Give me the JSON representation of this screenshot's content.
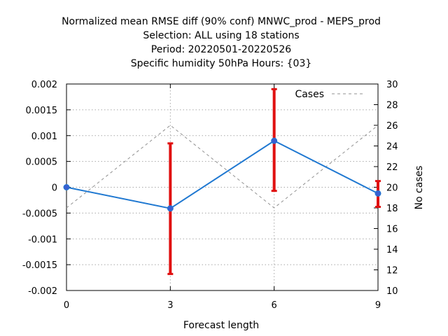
{
  "chart_data": {
    "type": "line",
    "title_lines": [
      "Normalized mean RMSE diff (90% conf) MNWC_prod - MEPS_prod",
      "Selection: ALL using    18 stations",
      "Period: 20220501-20220526",
      "Specific humidity 50hPa   Hours: {03}"
    ],
    "xlabel": "Forecast length",
    "ylabel": "",
    "y2label": "No cases",
    "x": [
      0,
      3,
      6,
      9
    ],
    "xlim": [
      0,
      9
    ],
    "ylim": [
      -0.002,
      0.002
    ],
    "y2lim": [
      10,
      30
    ],
    "x_ticks": [
      0,
      3,
      6,
      9
    ],
    "y_ticks": [
      -0.002,
      -0.0015,
      -0.001,
      -0.0005,
      0,
      0.0005,
      0.001,
      0.0015,
      0.002
    ],
    "y_tick_labels": [
      "-0.002",
      "-0.0015",
      "-0.001",
      "-0.0005",
      "0",
      "0.0005",
      "0.001",
      "0.0015",
      "0.002"
    ],
    "y2_ticks": [
      10,
      12,
      14,
      16,
      18,
      20,
      22,
      24,
      26,
      28,
      30
    ],
    "grid": true,
    "legend_position": "top-right",
    "series": [
      {
        "name": "",
        "axis": "left",
        "color": "#1f78d1",
        "values": [
          0,
          -0.00041,
          0.0009,
          -0.00012
        ],
        "error_low": [
          0,
          -0.00168,
          -7e-05,
          -0.00038
        ],
        "error_high": [
          0,
          0.00085,
          0.0019,
          0.00012
        ],
        "error_color": "#e01010"
      },
      {
        "name": "Cases",
        "axis": "right",
        "color": "#909090",
        "style": "dashed",
        "values": [
          18,
          26,
          18,
          26
        ]
      }
    ]
  }
}
